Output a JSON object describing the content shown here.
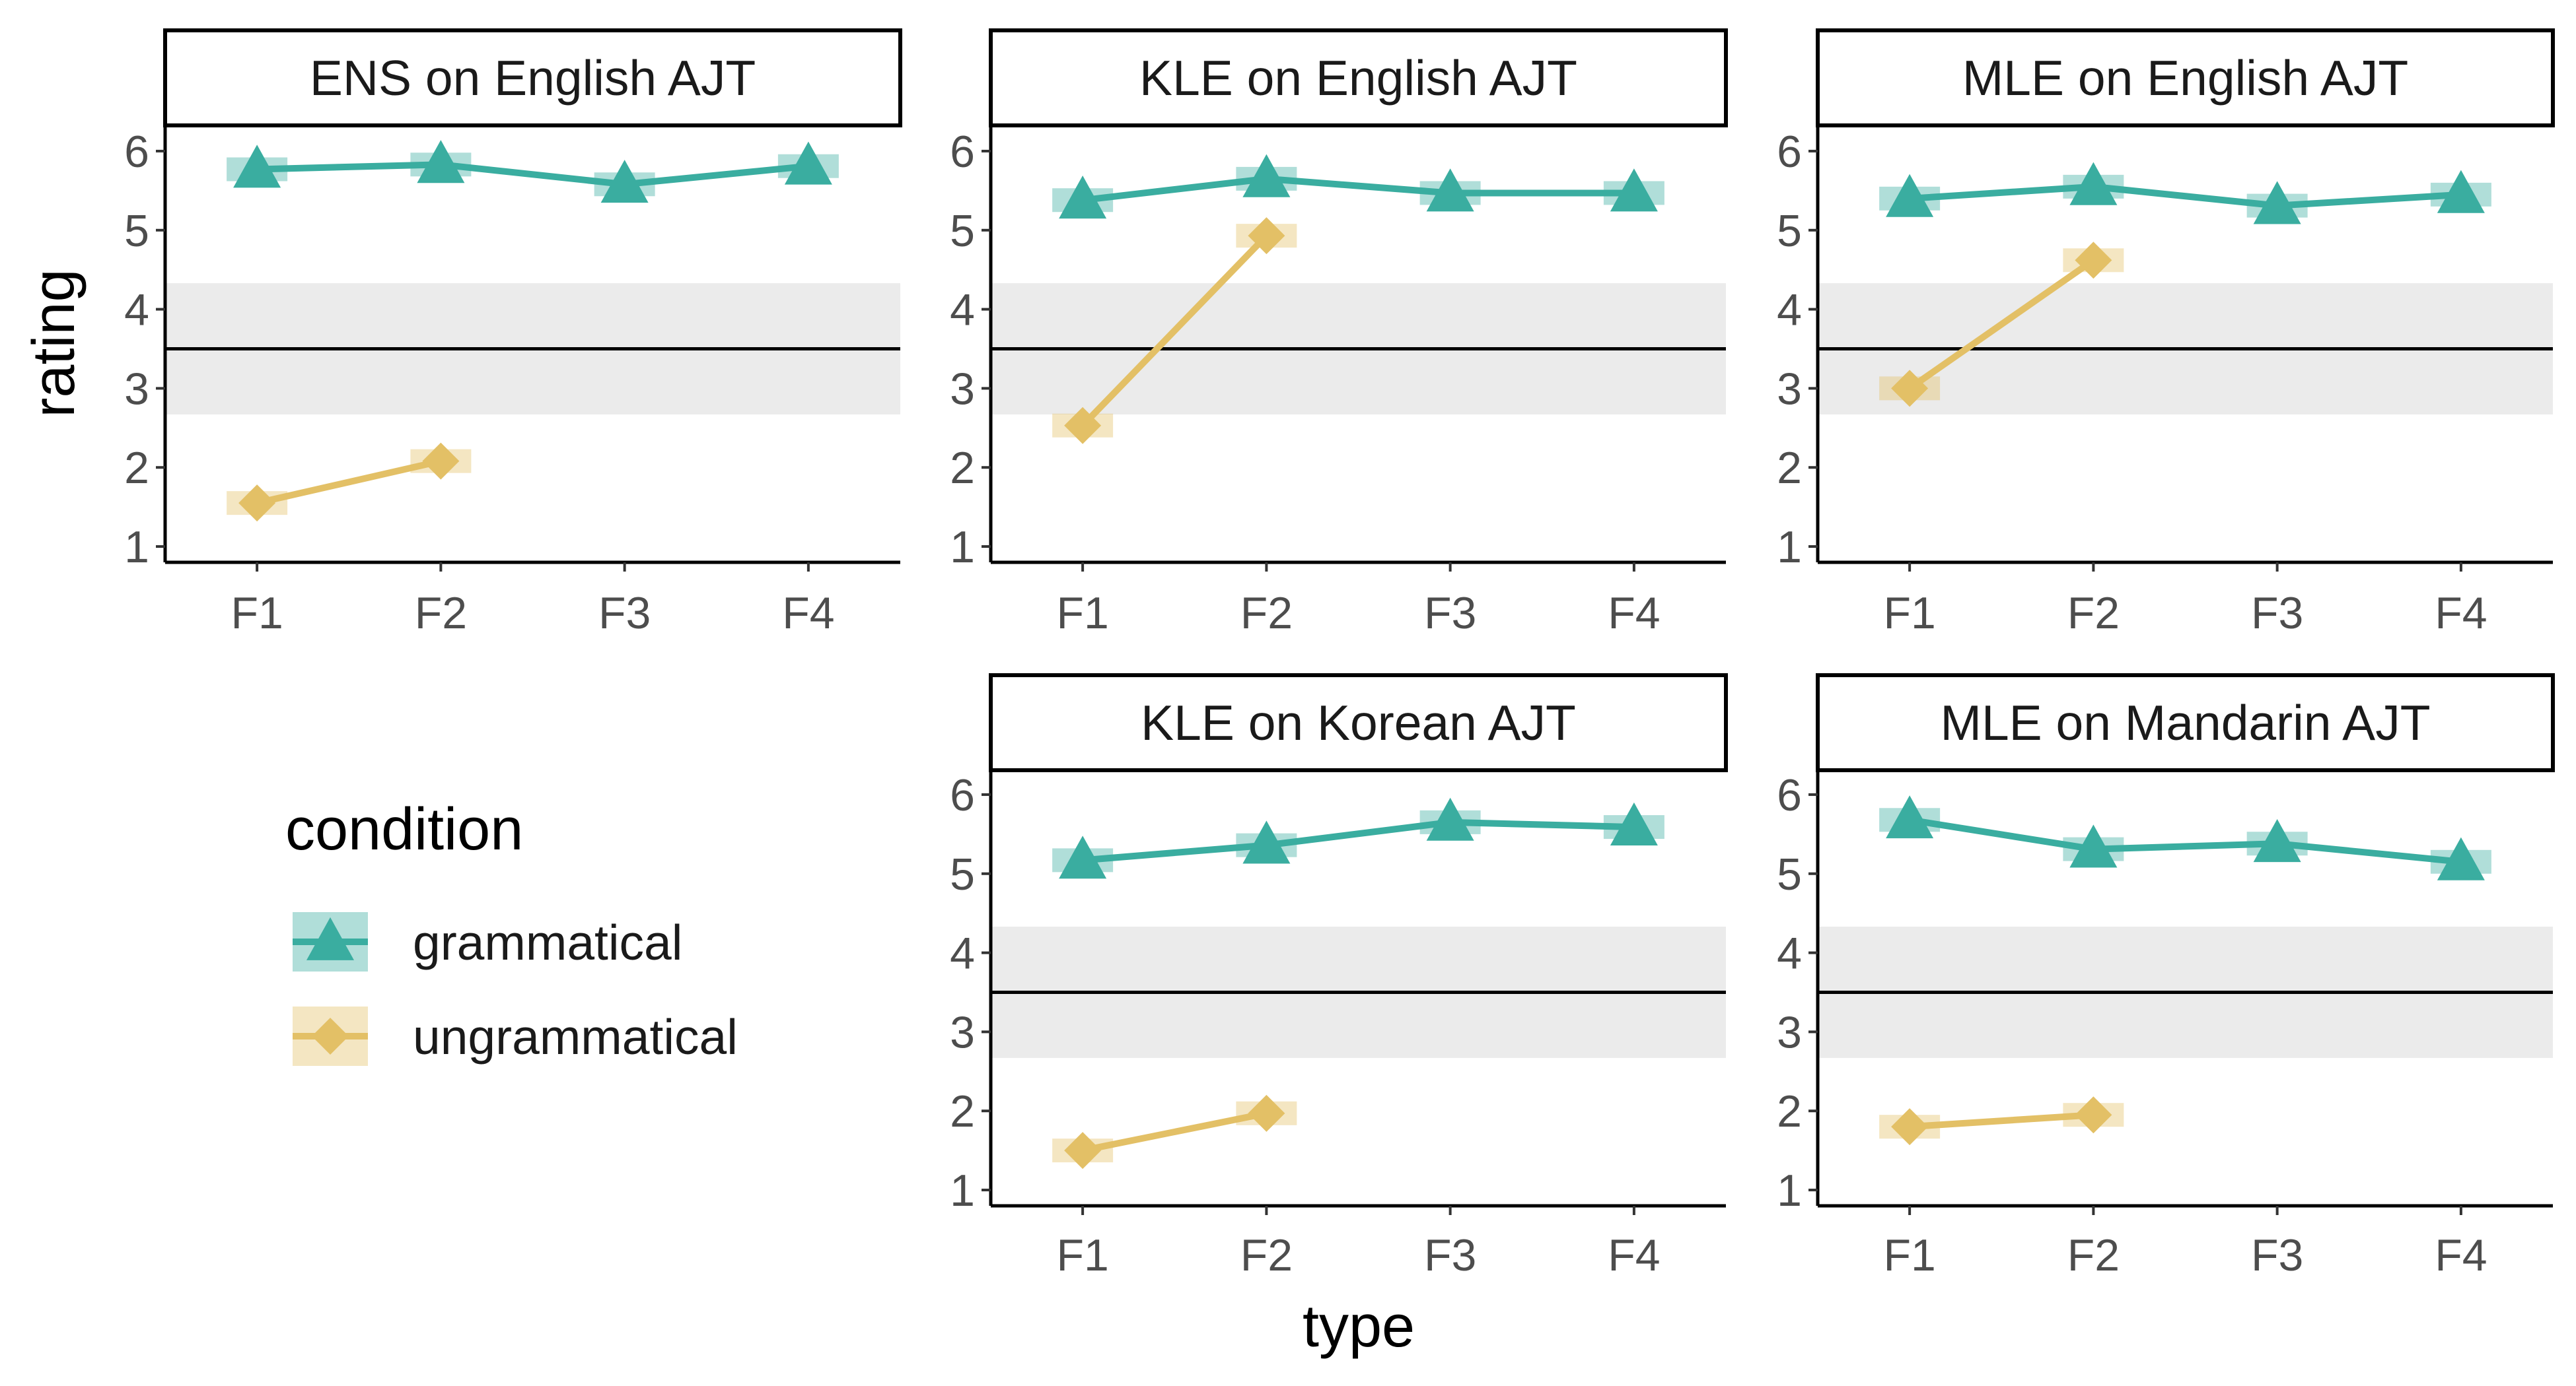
{
  "chart_data": {
    "type": "line",
    "xlabel": "type",
    "ylabel": "rating",
    "ylim": [
      0.8,
      6.3
    ],
    "yticks": [
      1,
      2,
      3,
      4,
      5,
      6
    ],
    "categories": [
      "F1",
      "F2",
      "F3",
      "F4"
    ],
    "reference_line": 3.5,
    "reference_band": [
      2.67,
      4.33
    ],
    "grid": false,
    "legend": {
      "title": "condition",
      "position": "bottom-left",
      "entries": [
        {
          "label": "grammatical",
          "color": "#3aada0",
          "marker": "triangle"
        },
        {
          "label": "ungrammatical",
          "color": "#e3c066",
          "marker": "diamond"
        }
      ]
    },
    "panels": [
      {
        "title": "ENS on English AJT",
        "series": [
          {
            "name": "grammatical",
            "values": [
              5.77,
              5.83,
              5.58,
              5.81
            ]
          },
          {
            "name": "ungrammatical",
            "values": [
              1.55,
              2.08,
              null,
              null
            ]
          }
        ]
      },
      {
        "title": "KLE on English AJT",
        "series": [
          {
            "name": "grammatical",
            "values": [
              5.38,
              5.65,
              5.47,
              5.47
            ]
          },
          {
            "name": "ungrammatical",
            "values": [
              2.53,
              4.93,
              null,
              null
            ]
          }
        ]
      },
      {
        "title": "MLE on English AJT",
        "series": [
          {
            "name": "grammatical",
            "values": [
              5.4,
              5.55,
              5.31,
              5.45
            ]
          },
          {
            "name": "ungrammatical",
            "values": [
              3.0,
              4.62,
              null,
              null
            ]
          }
        ]
      },
      {
        "title": "KLE on Korean AJT",
        "series": [
          {
            "name": "grammatical",
            "values": [
              5.17,
              5.36,
              5.65,
              5.59
            ]
          },
          {
            "name": "ungrammatical",
            "values": [
              1.5,
              1.97,
              null,
              null
            ]
          }
        ]
      },
      {
        "title": "MLE on Mandarin AJT",
        "series": [
          {
            "name": "grammatical",
            "values": [
              5.68,
              5.31,
              5.38,
              5.15
            ]
          },
          {
            "name": "ungrammatical",
            "values": [
              1.8,
              1.95,
              null,
              null
            ]
          }
        ]
      }
    ]
  }
}
